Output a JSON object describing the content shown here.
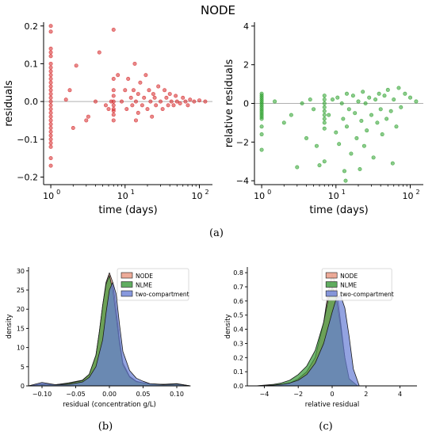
{
  "figure_title": "NODE",
  "chart_data": [
    {
      "type": "scatter",
      "panel": "(a)",
      "xlabel": "time (days)",
      "ylabel": "residuals",
      "xscale": "log",
      "xlim": [
        0.8,
        150
      ],
      "ylim": [
        -0.22,
        0.21
      ],
      "xticks": [
        1,
        10,
        100
      ],
      "xtick_labels": [
        "10",
        "10",
        "10"
      ],
      "xtick_exponents": [
        "0",
        "1",
        "2"
      ],
      "yticks": [
        -0.2,
        -0.1,
        0.0,
        0.1,
        0.2
      ],
      "ytick_labels": [
        "−0.2",
        "−0.1",
        "0.0",
        "0.1",
        "0.2"
      ],
      "reference_line_y": 0,
      "color": "#d62728",
      "points": [
        [
          1,
          0.2
        ],
        [
          1,
          0.185
        ],
        [
          1,
          0.14
        ],
        [
          1,
          0.13
        ],
        [
          1,
          0.12
        ],
        [
          1,
          0.1
        ],
        [
          1,
          0.09
        ],
        [
          1,
          0.08
        ],
        [
          1,
          0.07
        ],
        [
          1,
          0.06
        ],
        [
          1,
          0.05
        ],
        [
          1,
          0.04
        ],
        [
          1,
          0.03
        ],
        [
          1,
          0.02
        ],
        [
          1,
          0.01
        ],
        [
          1,
          0.0
        ],
        [
          1,
          -0.01
        ],
        [
          1,
          -0.02
        ],
        [
          1,
          -0.03
        ],
        [
          1,
          -0.04
        ],
        [
          1,
          -0.05
        ],
        [
          1,
          -0.06
        ],
        [
          1,
          -0.07
        ],
        [
          1,
          -0.08
        ],
        [
          1,
          -0.09
        ],
        [
          1,
          -0.1
        ],
        [
          1,
          -0.11
        ],
        [
          1,
          -0.12
        ],
        [
          1,
          -0.15
        ],
        [
          1,
          -0.17
        ],
        [
          1.6,
          0.005
        ],
        [
          1.8,
          0.03
        ],
        [
          2.0,
          -0.07
        ],
        [
          2.2,
          0.095
        ],
        [
          3.0,
          -0.05
        ],
        [
          3.2,
          -0.04
        ],
        [
          4.0,
          0.0
        ],
        [
          4.5,
          0.13
        ],
        [
          5.5,
          -0.01
        ],
        [
          6.0,
          -0.02
        ],
        [
          6.5,
          0.0
        ],
        [
          7,
          0.19
        ],
        [
          7,
          0.06
        ],
        [
          7,
          0.03
        ],
        [
          7,
          0.015
        ],
        [
          7,
          0.0
        ],
        [
          7,
          -0.01
        ],
        [
          7,
          -0.02
        ],
        [
          7,
          -0.025
        ],
        [
          7,
          -0.035
        ],
        [
          7,
          -0.05
        ],
        [
          8,
          0.07
        ],
        [
          9,
          0.0
        ],
        [
          10,
          0.03
        ],
        [
          10.5,
          -0.02
        ],
        [
          11,
          0.06
        ],
        [
          12,
          0.01
        ],
        [
          12.5,
          -0.01
        ],
        [
          13,
          0.03
        ],
        [
          13.5,
          0.1
        ],
        [
          14,
          -0.05
        ],
        [
          14,
          0.0
        ],
        [
          15,
          0.02
        ],
        [
          15,
          -0.03
        ],
        [
          16,
          0.05
        ],
        [
          17,
          -0.01
        ],
        [
          18,
          0.01
        ],
        [
          19,
          0.07
        ],
        [
          20,
          -0.02
        ],
        [
          21,
          0.03
        ],
        [
          22,
          0.0
        ],
        [
          23,
          -0.04
        ],
        [
          24,
          0.02
        ],
        [
          25,
          0.01
        ],
        [
          26,
          -0.01
        ],
        [
          28,
          0.04
        ],
        [
          30,
          0.0
        ],
        [
          32,
          -0.02
        ],
        [
          34,
          0.03
        ],
        [
          36,
          0.01
        ],
        [
          38,
          -0.01
        ],
        [
          40,
          0.02
        ],
        [
          42,
          0.0
        ],
        [
          45,
          -0.01
        ],
        [
          48,
          0.015
        ],
        [
          50,
          0.0
        ],
        [
          55,
          -0.005
        ],
        [
          60,
          0.01
        ],
        [
          65,
          0.0
        ],
        [
          70,
          -0.01
        ],
        [
          75,
          0.005
        ],
        [
          85,
          0.0
        ],
        [
          100,
          0.003
        ],
        [
          120,
          0.0
        ]
      ]
    },
    {
      "type": "scatter",
      "panel": "(a)",
      "xlabel": "time (days)",
      "ylabel": "relative residuals",
      "xscale": "log",
      "xlim": [
        0.8,
        150
      ],
      "ylim": [
        -4.2,
        4.2
      ],
      "xticks": [
        1,
        10,
        100
      ],
      "xtick_labels": [
        "10",
        "10",
        "10"
      ],
      "xtick_exponents": [
        "0",
        "1",
        "2"
      ],
      "yticks": [
        -4,
        -2,
        0,
        2,
        4
      ],
      "ytick_labels": [
        "−4",
        "−2",
        "0",
        "2",
        "4"
      ],
      "reference_line_y": 0,
      "color": "#2ca02c",
      "points": [
        [
          1,
          0.5
        ],
        [
          1,
          0.4
        ],
        [
          1,
          0.3
        ],
        [
          1,
          0.2
        ],
        [
          1,
          0.1
        ],
        [
          1,
          0.0
        ],
        [
          1,
          -0.1
        ],
        [
          1,
          -0.2
        ],
        [
          1,
          -0.3
        ],
        [
          1,
          -0.4
        ],
        [
          1,
          -0.5
        ],
        [
          1,
          -0.6
        ],
        [
          1,
          -0.7
        ],
        [
          1,
          -0.8
        ],
        [
          1,
          -1.2
        ],
        [
          1,
          -1.6
        ],
        [
          1,
          -2.4
        ],
        [
          1.5,
          0.1
        ],
        [
          2,
          -1.0
        ],
        [
          2.5,
          -0.6
        ],
        [
          3,
          -3.3
        ],
        [
          3.5,
          0.0
        ],
        [
          4,
          -1.8
        ],
        [
          4.5,
          0.2
        ],
        [
          5,
          -0.3
        ],
        [
          5.5,
          -2.2
        ],
        [
          6,
          -3.2
        ],
        [
          7,
          0.4
        ],
        [
          7,
          0.2
        ],
        [
          7,
          0.0
        ],
        [
          7,
          -0.2
        ],
        [
          7,
          -0.4
        ],
        [
          7,
          -0.6
        ],
        [
          7,
          -0.8
        ],
        [
          7,
          -1.0
        ],
        [
          7,
          -1.3
        ],
        [
          7,
          -3.0
        ],
        [
          8,
          -0.6
        ],
        [
          9,
          0.2
        ],
        [
          10,
          -1.5
        ],
        [
          10.5,
          0.3
        ],
        [
          11,
          -2.1
        ],
        [
          12,
          0.0
        ],
        [
          12.5,
          -0.8
        ],
        [
          13,
          -3.5
        ],
        [
          13.5,
          -4.0
        ],
        [
          14,
          0.5
        ],
        [
          14,
          -1.2
        ],
        [
          15,
          -0.3
        ],
        [
          16,
          -2.6
        ],
        [
          17,
          0.4
        ],
        [
          18,
          -0.5
        ],
        [
          19,
          -1.8
        ],
        [
          20,
          0.1
        ],
        [
          21,
          -3.4
        ],
        [
          22,
          -0.9
        ],
        [
          23,
          0.6
        ],
        [
          24,
          -2.2
        ],
        [
          25,
          0.0
        ],
        [
          26,
          -1.4
        ],
        [
          28,
          0.3
        ],
        [
          30,
          -0.6
        ],
        [
          32,
          -2.8
        ],
        [
          34,
          0.2
        ],
        [
          36,
          -1.0
        ],
        [
          38,
          0.5
        ],
        [
          40,
          -0.3
        ],
        [
          42,
          -1.6
        ],
        [
          45,
          0.4
        ],
        [
          48,
          -0.8
        ],
        [
          50,
          0.7
        ],
        [
          55,
          -0.4
        ],
        [
          58,
          -3.1
        ],
        [
          60,
          0.2
        ],
        [
          65,
          -1.2
        ],
        [
          70,
          0.8
        ],
        [
          75,
          -0.2
        ],
        [
          85,
          0.5
        ],
        [
          100,
          0.3
        ],
        [
          120,
          0.1
        ]
      ]
    },
    {
      "type": "area",
      "panel": "(b)",
      "xlabel": "residual (concentration g/L)",
      "ylabel": "density",
      "xlim": [
        -0.12,
        0.12
      ],
      "ylim": [
        0,
        31
      ],
      "xticks": [
        -0.1,
        -0.05,
        0.0,
        0.05,
        0.1
      ],
      "xtick_labels": [
        "−0.10",
        "−0.05",
        "0.00",
        "0.05",
        "0.10"
      ],
      "yticks": [
        0,
        5,
        10,
        15,
        20,
        25,
        30
      ],
      "ytick_labels": [
        "0",
        "5",
        "10",
        "15",
        "20",
        "25",
        "30"
      ],
      "legend": "top-right",
      "series": [
        {
          "name": "NODE",
          "color": "#e8967f",
          "x": [
            -0.12,
            -0.1,
            -0.08,
            -0.06,
            -0.04,
            -0.03,
            -0.02,
            -0.015,
            -0.01,
            -0.005,
            0.0,
            0.005,
            0.01,
            0.015,
            0.02,
            0.03,
            0.04,
            0.05,
            0.06,
            0.08,
            0.1,
            0.12
          ],
          "values": [
            0,
            0.5,
            0.3,
            0.8,
            1.5,
            3,
            8,
            14,
            21,
            27,
            29.5,
            27,
            20,
            12,
            6,
            2.5,
            1.2,
            0.8,
            0.5,
            0.4,
            0.6,
            0
          ]
        },
        {
          "name": "NLME",
          "color": "#3a9a3a",
          "x": [
            -0.12,
            -0.1,
            -0.08,
            -0.06,
            -0.04,
            -0.03,
            -0.02,
            -0.015,
            -0.01,
            -0.005,
            0.0,
            0.005,
            0.01,
            0.015,
            0.02,
            0.03,
            0.04,
            0.05,
            0.06,
            0.08,
            0.1,
            0.12
          ],
          "values": [
            0,
            0.4,
            0.3,
            0.7,
            1.4,
            3,
            8,
            14,
            21,
            26.5,
            28.8,
            25,
            18,
            11,
            5.5,
            2.3,
            1.1,
            0.8,
            0.5,
            0.4,
            0.5,
            0
          ]
        },
        {
          "name": "two-compartment",
          "color": "#6a7fd6",
          "x": [
            -0.12,
            -0.1,
            -0.08,
            -0.06,
            -0.04,
            -0.03,
            -0.02,
            -0.01,
            -0.005,
            0.0,
            0.005,
            0.01,
            0.015,
            0.02,
            0.03,
            0.04,
            0.05,
            0.06,
            0.08,
            0.1,
            0.12
          ],
          "values": [
            0,
            0.9,
            0.3,
            0.4,
            1.0,
            2.2,
            5,
            12,
            19,
            25,
            27,
            24,
            16,
            9,
            4,
            2,
            1.2,
            0.6,
            0.3,
            0.5,
            0
          ]
        }
      ]
    },
    {
      "type": "area",
      "panel": "(c)",
      "xlabel": "relative residual",
      "ylabel": "density",
      "xlim": [
        -5,
        5
      ],
      "ylim": [
        0,
        0.84
      ],
      "xticks": [
        -4,
        -2,
        0,
        2,
        4
      ],
      "xtick_labels": [
        "−4",
        "−2",
        "0",
        "2",
        "4"
      ],
      "yticks": [
        0,
        0.1,
        0.2,
        0.3,
        0.4,
        0.5,
        0.6,
        0.7,
        0.8
      ],
      "ytick_labels": [
        "0.0",
        "0.1",
        "0.2",
        "0.3",
        "0.4",
        "0.5",
        "0.6",
        "0.7",
        "0.8"
      ],
      "legend": "top-left",
      "series": [
        {
          "name": "NODE",
          "color": "#e8967f",
          "x": [
            -4.5,
            -3.5,
            -3,
            -2.5,
            -2,
            -1.5,
            -1,
            -0.5,
            -0.25,
            0,
            0.25,
            0.5,
            0.75,
            1,
            1.5
          ],
          "values": [
            0,
            0.005,
            0.01,
            0.02,
            0.05,
            0.1,
            0.2,
            0.45,
            0.65,
            0.79,
            0.7,
            0.45,
            0.2,
            0.05,
            0
          ]
        },
        {
          "name": "NLME",
          "color": "#3a9a3a",
          "x": [
            -4.5,
            -3.5,
            -3,
            -2.5,
            -2,
            -1.5,
            -1,
            -0.5,
            -0.25,
            0,
            0.25,
            0.5,
            0.75,
            1,
            1.5
          ],
          "values": [
            0,
            0.01,
            0.02,
            0.04,
            0.08,
            0.14,
            0.25,
            0.45,
            0.6,
            0.7,
            0.62,
            0.42,
            0.2,
            0.05,
            0
          ]
        },
        {
          "name": "two-compartment",
          "color": "#6a7fd6",
          "x": [
            -4.5,
            -3.5,
            -3,
            -2.5,
            -2,
            -1.5,
            -1,
            -0.5,
            0,
            0.25,
            0.5,
            0.75,
            1,
            1.25,
            1.6
          ],
          "values": [
            0,
            0.005,
            0.01,
            0.02,
            0.04,
            0.08,
            0.16,
            0.3,
            0.52,
            0.62,
            0.64,
            0.55,
            0.35,
            0.12,
            0
          ]
        }
      ]
    }
  ],
  "captions": [
    "(a)",
    "(b)",
    "(c)"
  ]
}
